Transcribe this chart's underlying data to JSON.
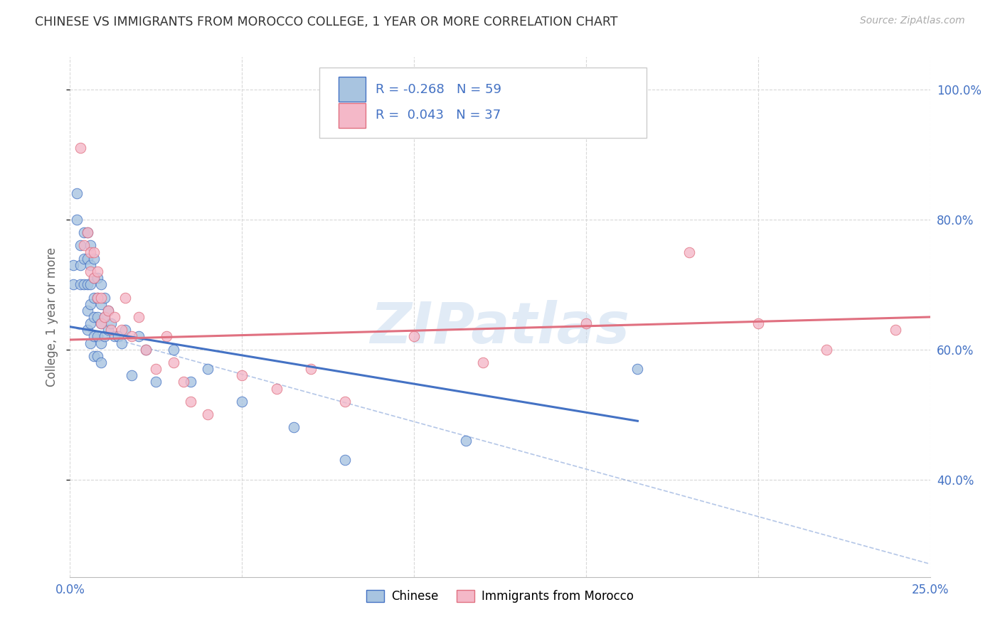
{
  "title": "CHINESE VS IMMIGRANTS FROM MOROCCO COLLEGE, 1 YEAR OR MORE CORRELATION CHART",
  "source": "Source: ZipAtlas.com",
  "ylabel": "College, 1 year or more",
  "xlim": [
    0.0,
    0.25
  ],
  "ylim": [
    0.25,
    1.05
  ],
  "xticks": [
    0.0,
    0.05,
    0.1,
    0.15,
    0.2,
    0.25
  ],
  "xticklabels": [
    "0.0%",
    "",
    "",
    "",
    "",
    "25.0%"
  ],
  "yticks_right": [
    0.4,
    0.6,
    0.8,
    1.0
  ],
  "yticklabels_right": [
    "40.0%",
    "60.0%",
    "80.0%",
    "100.0%"
  ],
  "legend_r_chinese": "-0.268",
  "legend_n_chinese": "59",
  "legend_r_morocco": "0.043",
  "legend_n_morocco": "37",
  "watermark": "ZIPatlas",
  "chinese_color": "#a8c4e0",
  "morocco_color": "#f4b8c8",
  "chinese_line_color": "#4472c4",
  "morocco_line_color": "#e07080",
  "chinese_x": [
    0.001,
    0.001,
    0.002,
    0.002,
    0.003,
    0.003,
    0.003,
    0.004,
    0.004,
    0.004,
    0.005,
    0.005,
    0.005,
    0.005,
    0.005,
    0.006,
    0.006,
    0.006,
    0.006,
    0.006,
    0.006,
    0.007,
    0.007,
    0.007,
    0.007,
    0.007,
    0.007,
    0.008,
    0.008,
    0.008,
    0.008,
    0.008,
    0.009,
    0.009,
    0.009,
    0.009,
    0.009,
    0.01,
    0.01,
    0.01,
    0.011,
    0.011,
    0.012,
    0.013,
    0.014,
    0.015,
    0.016,
    0.018,
    0.02,
    0.022,
    0.025,
    0.03,
    0.035,
    0.04,
    0.05,
    0.065,
    0.08,
    0.115,
    0.165
  ],
  "chinese_y": [
    0.73,
    0.7,
    0.84,
    0.8,
    0.76,
    0.73,
    0.7,
    0.78,
    0.74,
    0.7,
    0.78,
    0.74,
    0.7,
    0.66,
    0.63,
    0.76,
    0.73,
    0.7,
    0.67,
    0.64,
    0.61,
    0.74,
    0.71,
    0.68,
    0.65,
    0.62,
    0.59,
    0.71,
    0.68,
    0.65,
    0.62,
    0.59,
    0.7,
    0.67,
    0.64,
    0.61,
    0.58,
    0.68,
    0.65,
    0.62,
    0.66,
    0.63,
    0.64,
    0.62,
    0.62,
    0.61,
    0.63,
    0.56,
    0.62,
    0.6,
    0.55,
    0.6,
    0.55,
    0.57,
    0.52,
    0.48,
    0.43,
    0.46,
    0.57
  ],
  "morocco_x": [
    0.003,
    0.004,
    0.005,
    0.006,
    0.006,
    0.007,
    0.007,
    0.008,
    0.008,
    0.009,
    0.009,
    0.01,
    0.011,
    0.012,
    0.013,
    0.015,
    0.016,
    0.018,
    0.02,
    0.022,
    0.025,
    0.028,
    0.03,
    0.033,
    0.035,
    0.04,
    0.05,
    0.06,
    0.07,
    0.08,
    0.1,
    0.12,
    0.15,
    0.18,
    0.2,
    0.22,
    0.24
  ],
  "morocco_y": [
    0.91,
    0.76,
    0.78,
    0.75,
    0.72,
    0.75,
    0.71,
    0.72,
    0.68,
    0.68,
    0.64,
    0.65,
    0.66,
    0.63,
    0.65,
    0.63,
    0.68,
    0.62,
    0.65,
    0.6,
    0.57,
    0.62,
    0.58,
    0.55,
    0.52,
    0.5,
    0.56,
    0.54,
    0.57,
    0.52,
    0.62,
    0.58,
    0.64,
    0.75,
    0.64,
    0.6,
    0.63
  ],
  "chinese_line_x0": 0.0,
  "chinese_line_x1": 0.165,
  "chinese_line_y0": 0.635,
  "chinese_line_y1": 0.49,
  "dashed_line_x0": 0.0,
  "dashed_line_x1": 0.25,
  "dashed_line_y0": 0.635,
  "dashed_line_y1": 0.27,
  "morocco_line_x0": 0.0,
  "morocco_line_x1": 0.25,
  "morocco_line_y0": 0.615,
  "morocco_line_y1": 0.65,
  "bg_color": "#ffffff",
  "grid_color": "#d8d8d8",
  "title_color": "#333333",
  "axis_label_color": "#666666",
  "right_tick_color": "#4472c4",
  "legend_text_color": "#4472c4"
}
